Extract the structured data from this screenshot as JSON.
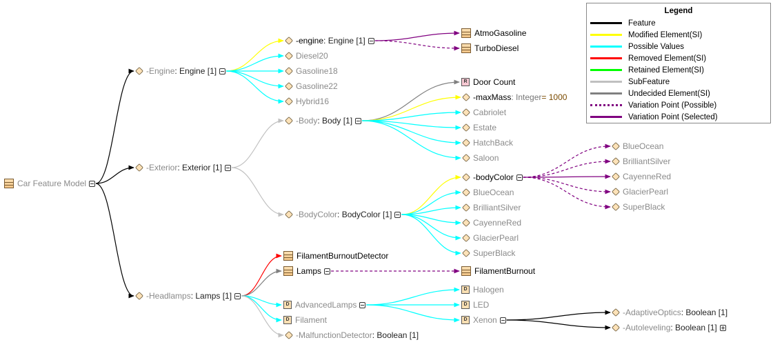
{
  "legend": {
    "title": "Legend",
    "items": [
      {
        "label": "Feature",
        "color": "#000000",
        "style": "solid"
      },
      {
        "label": "Modified Element(SI)",
        "color": "#ffff00",
        "style": "solid"
      },
      {
        "label": "Possible Values",
        "color": "#00ffff",
        "style": "solid"
      },
      {
        "label": "Removed Element(SI)",
        "color": "#ff0000",
        "style": "solid"
      },
      {
        "label": "Retained Element(SI)",
        "color": "#00ff00",
        "style": "solid"
      },
      {
        "label": "SubFeature",
        "color": "#c0c0c0",
        "style": "solid"
      },
      {
        "label": "Undecided Element(SI)",
        "color": "#808080",
        "style": "solid"
      },
      {
        "label": "Variation Point (Possible)",
        "color": "#800080",
        "style": "dashed"
      },
      {
        "label": "Variation Point (Selected)",
        "color": "#800080",
        "style": "solid"
      }
    ]
  },
  "nodes": {
    "car_feature_model": {
      "name": "Car Feature Model",
      "icon": "class-icon",
      "collapse": "minus"
    },
    "engine_feature": {
      "name": "-Engine",
      "type": " : Engine [1]",
      "icon": "property-icon",
      "collapse": "minus"
    },
    "exterior": {
      "name": "-Exterior",
      "type": " : Exterior [1]",
      "icon": "property-icon",
      "collapse": "minus"
    },
    "headlamps": {
      "name": "-Headlamps",
      "type": " : Lamps [1]",
      "icon": "property-icon",
      "collapse": "minus"
    },
    "engine_prop": {
      "name": "-engine",
      "type": " : Engine [1]",
      "icon": "property-icon",
      "collapse": "minus"
    },
    "diesel20": {
      "name": "Diesel20",
      "icon": "property-icon"
    },
    "gasoline18": {
      "name": "Gasoline18",
      "icon": "property-icon"
    },
    "gasoline22": {
      "name": "Gasoline22",
      "icon": "property-icon"
    },
    "hybrid16": {
      "name": "Hybrid16",
      "icon": "property-icon"
    },
    "atmo_gasoline": {
      "name": "AtmoGasoline",
      "icon": "class-icon"
    },
    "turbo_diesel": {
      "name": "TurboDiesel",
      "icon": "class-icon"
    },
    "body": {
      "name": "-Body",
      "type": " : Body [1]",
      "icon": "property-icon",
      "collapse": "minus"
    },
    "door_count": {
      "name": "Door Count",
      "icon": "requirement-icon"
    },
    "max_mass": {
      "name": "-maxMass",
      "type": " : Integer",
      "value": " = 1000",
      "icon": "property-icon"
    },
    "cabriolet": {
      "name": "Cabriolet",
      "icon": "property-icon"
    },
    "estate": {
      "name": "Estate",
      "icon": "property-icon"
    },
    "hatchback": {
      "name": "HatchBack",
      "icon": "property-icon"
    },
    "saloon": {
      "name": "Saloon",
      "icon": "property-icon"
    },
    "body_color_feature": {
      "name": "-BodyColor",
      "type": " : BodyColor [1]",
      "icon": "property-icon",
      "collapse": "minus"
    },
    "body_color_prop": {
      "name": "-bodyColor",
      "icon": "property-icon",
      "collapse": "minus"
    },
    "bc_blue_ocean": {
      "name": "BlueOcean",
      "icon": "property-icon"
    },
    "bc_brilliant_silver": {
      "name": "BrilliantSilver",
      "icon": "property-icon"
    },
    "bc_cayenne_red": {
      "name": "CayenneRed",
      "icon": "property-icon"
    },
    "bc_glacier_pearl": {
      "name": "GlacierPearl",
      "icon": "property-icon"
    },
    "bc_super_black": {
      "name": "SuperBlack",
      "icon": "property-icon"
    },
    "v_blue_ocean": {
      "name": "BlueOcean",
      "icon": "property-icon"
    },
    "v_brilliant_silver": {
      "name": "BrilliantSilver",
      "icon": "property-icon"
    },
    "v_cayenne_red": {
      "name": "CayenneRed",
      "icon": "property-icon"
    },
    "v_glacier_pearl": {
      "name": "GlacierPearl",
      "icon": "property-icon"
    },
    "v_super_black": {
      "name": "SuperBlack",
      "icon": "property-icon"
    },
    "filament_burnout_detector": {
      "name": "FilamentBurnoutDetector",
      "icon": "class-icon"
    },
    "lamps": {
      "name": "Lamps",
      "icon": "class-icon",
      "collapse": "minus"
    },
    "filament_burnout": {
      "name": "FilamentBurnout",
      "icon": "class-icon"
    },
    "advanced_lamps": {
      "name": "AdvancedLamps",
      "icon": "datatype-icon",
      "collapse": "minus"
    },
    "filament": {
      "name": "Filament",
      "icon": "datatype-icon"
    },
    "malfunction_detector": {
      "name": "-MalfunctionDetector",
      "type": " : Boolean [1]",
      "icon": "property-icon"
    },
    "halogen": {
      "name": "Halogen",
      "icon": "datatype-icon"
    },
    "led": {
      "name": "LED",
      "icon": "datatype-icon"
    },
    "xenon": {
      "name": "Xenon",
      "icon": "datatype-icon",
      "collapse": "minus"
    },
    "adaptive_optics": {
      "name": "-AdaptiveOptics",
      "type": " : Boolean [1]",
      "icon": "property-icon"
    },
    "autoleveling": {
      "name": "-Autoleveling",
      "type": " : Boolean [1]",
      "icon": "property-icon",
      "collapse": "plus"
    }
  }
}
